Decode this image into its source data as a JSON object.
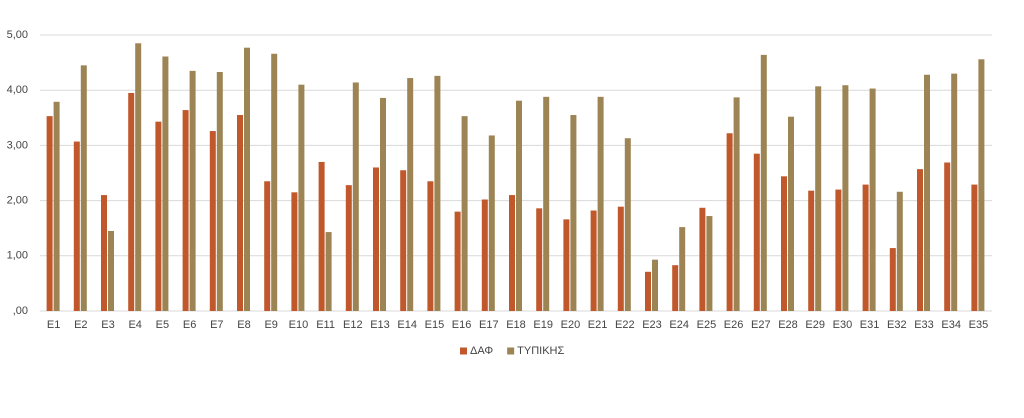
{
  "chart_data": {
    "type": "bar",
    "categories": [
      "E1",
      "E2",
      "E3",
      "E4",
      "E5",
      "E6",
      "E7",
      "E8",
      "E9",
      "E10",
      "E11",
      "E12",
      "E13",
      "E14",
      "E15",
      "E16",
      "E17",
      "E18",
      "E19",
      "E20",
      "E21",
      "E22",
      "E23",
      "E24",
      "E25",
      "E26",
      "E27",
      "E28",
      "E29",
      "E30",
      "E31",
      "E32",
      "E33",
      "E34",
      "E35"
    ],
    "series": [
      {
        "name": "ΔΑΦ",
        "color": "#c0582c",
        "values": [
          3.53,
          3.07,
          2.1,
          3.95,
          3.43,
          3.64,
          3.26,
          3.55,
          2.35,
          2.15,
          2.7,
          2.28,
          2.6,
          2.55,
          2.35,
          1.8,
          2.02,
          2.1,
          1.86,
          1.66,
          1.82,
          1.89,
          0.71,
          0.83,
          1.87,
          3.22,
          2.85,
          2.44,
          2.18,
          2.2,
          2.29,
          1.14,
          2.57,
          2.69,
          2.29
        ]
      },
      {
        "name": "ΤΥΠΙΚΗΣ",
        "color": "#9c8455",
        "values": [
          3.79,
          4.45,
          1.45,
          4.85,
          4.61,
          4.35,
          4.33,
          4.77,
          4.66,
          4.1,
          1.43,
          4.14,
          3.86,
          4.22,
          4.26,
          3.53,
          3.18,
          3.81,
          3.88,
          3.55,
          3.88,
          3.13,
          0.93,
          1.52,
          1.72,
          3.87,
          4.64,
          3.52,
          4.07,
          4.09,
          4.03,
          2.16,
          4.28,
          4.3,
          4.56
        ]
      }
    ],
    "ylim": [
      0,
      5
    ],
    "yticks": [
      {
        "value": 0,
        "label": ",00"
      },
      {
        "value": 1,
        "label": "1,00"
      },
      {
        "value": 2,
        "label": "2,00"
      },
      {
        "value": 3,
        "label": "3,00"
      },
      {
        "value": 4,
        "label": "4,00"
      },
      {
        "value": 5,
        "label": "5,00"
      }
    ],
    "grid": true,
    "legend": "bottom"
  }
}
